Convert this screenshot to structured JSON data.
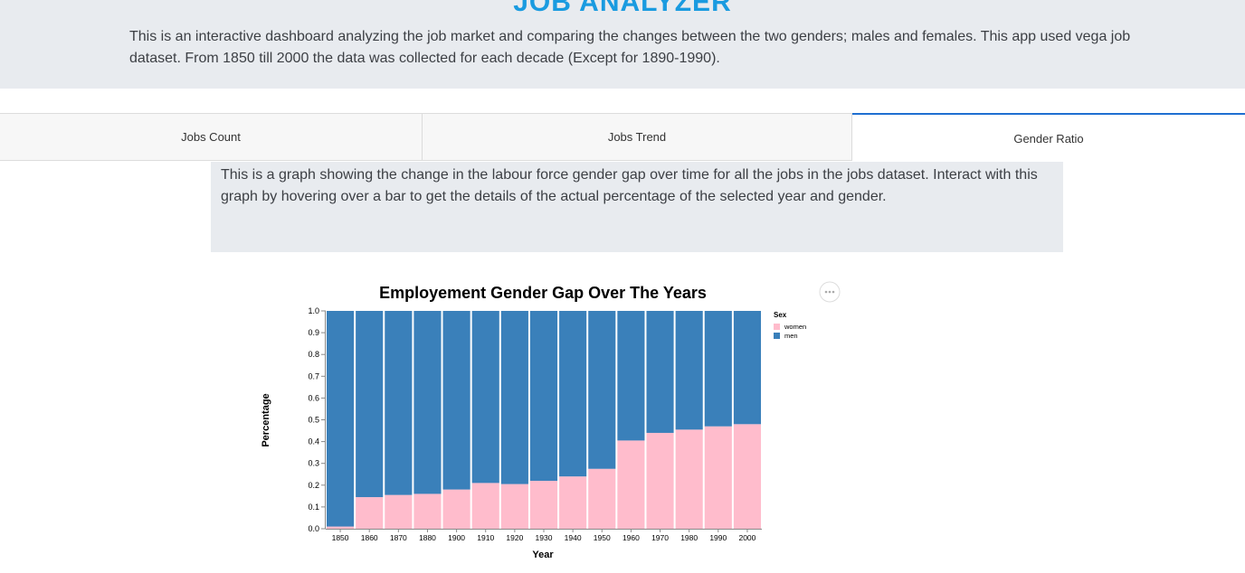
{
  "app": {
    "title": "JOB ANALYZER",
    "description": "This is an interactive dashboard analyzing the job market and comparing the changes between the two genders; males and females. This app used vega job dataset. From 1850 till 2000 the data was collected for each decade (Except for 1890-1990)."
  },
  "tabs": [
    {
      "label": "Jobs Count",
      "active": false
    },
    {
      "label": "Jobs Trend",
      "active": false
    },
    {
      "label": "Gender Ratio",
      "active": true
    }
  ],
  "panel": {
    "description": "This is a graph showing the change in the labour force gender gap over time for all the jobs in the jobs dataset. Interact with this graph by hovering over a bar to get the details of the actual percentage of the selected year and gender."
  },
  "chart_data": {
    "type": "bar",
    "stacked": "normalize",
    "title": "Employement Gender Gap Over The Years",
    "xlabel": "Year",
    "ylabel": "Percentage",
    "ylim": [
      0,
      1
    ],
    "yticks": [
      "0.0",
      "0.1",
      "0.2",
      "0.3",
      "0.4",
      "0.5",
      "0.6",
      "0.7",
      "0.8",
      "0.9",
      "1.0"
    ],
    "categories": [
      "1850",
      "1860",
      "1870",
      "1880",
      "1900",
      "1910",
      "1920",
      "1930",
      "1940",
      "1950",
      "1960",
      "1970",
      "1980",
      "1990",
      "2000"
    ],
    "series": [
      {
        "name": "women",
        "color": "#ffbccc",
        "values": [
          0.01,
          0.145,
          0.155,
          0.16,
          0.18,
          0.21,
          0.205,
          0.22,
          0.24,
          0.275,
          0.405,
          0.44,
          0.455,
          0.47,
          0.48
        ]
      },
      {
        "name": "men",
        "color": "#3a80ba",
        "values": [
          0.99,
          0.855,
          0.845,
          0.84,
          0.82,
          0.79,
          0.795,
          0.78,
          0.76,
          0.725,
          0.595,
          0.56,
          0.545,
          0.53,
          0.52
        ]
      }
    ],
    "legend": {
      "title": "Sex",
      "position": "right"
    },
    "grid": false
  },
  "menu": {
    "icon": "ellipsis-icon"
  }
}
